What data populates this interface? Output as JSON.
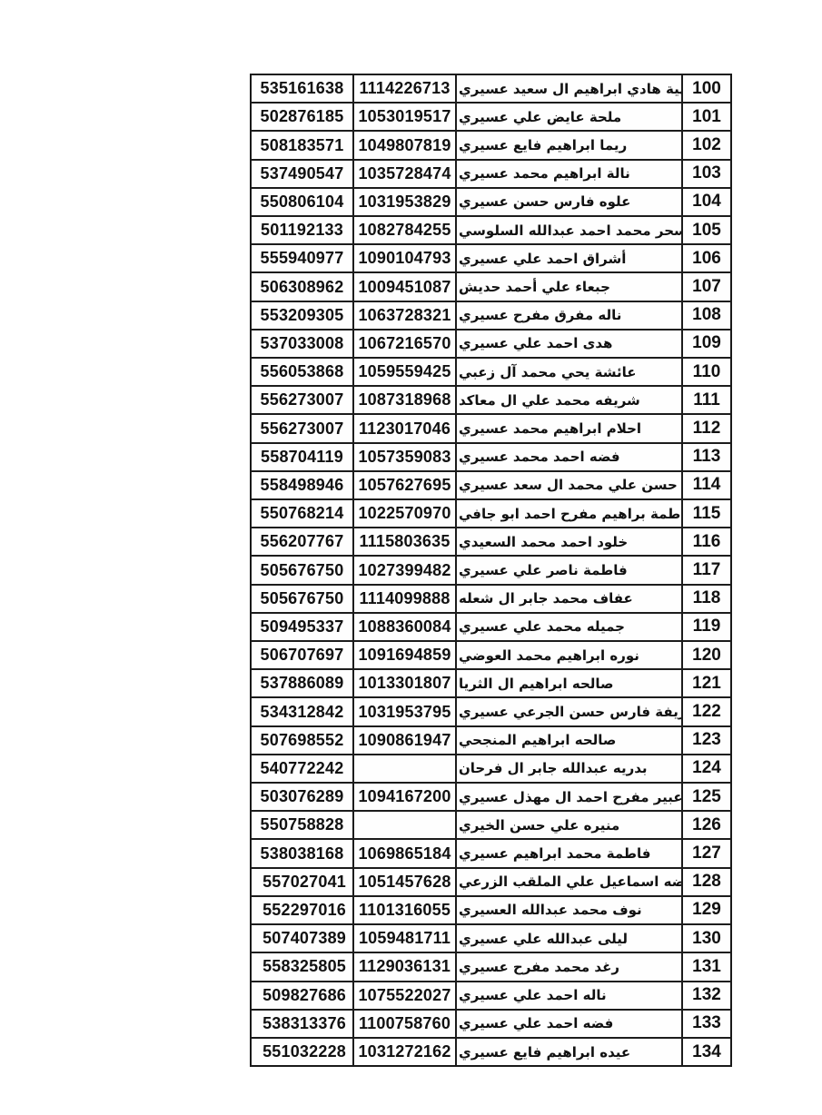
{
  "page": {
    "background": "#ffffff"
  },
  "colors": {
    "ink": "#111111",
    "table_border": "#1c1c1c"
  },
  "table": {
    "row_count": 35,
    "first_row_number": "100",
    "last_row_number": "134",
    "rows": [
      {
        "num": "100",
        "name": "بهية هادي ابراهيم ال سعيد عسيري",
        "id": "1114226713",
        "phone": "535161638"
      },
      {
        "num": "101",
        "name": "ملحة عايض علي عسيري",
        "id": "1053019517",
        "phone": "502876185"
      },
      {
        "num": "102",
        "name": "ريما ابراهيم فايع عسيري",
        "id": "1049807819",
        "phone": "508183571"
      },
      {
        "num": "103",
        "name": "نالة ابراهيم محمد عسيري",
        "id": "1035728474",
        "phone": "537490547"
      },
      {
        "num": "104",
        "name": "علوه فارس حسن عسيري",
        "id": "1031953829",
        "phone": "550806104"
      },
      {
        "num": "105",
        "name": "سحر محمد احمد عبدالله السلوسي",
        "id": "1082784255",
        "phone": "501192133"
      },
      {
        "num": "106",
        "name": "أشراق احمد علي عسيري",
        "id": "1090104793",
        "phone": "555940977"
      },
      {
        "num": "107",
        "name": "جبعاء علي أحمد حديش",
        "id": "1009451087",
        "phone": "506308962"
      },
      {
        "num": "108",
        "name": "ناله مفرق مفرح عسيري",
        "id": "1063728321",
        "phone": "553209305"
      },
      {
        "num": "109",
        "name": "هدى احمد علي عسيري",
        "id": "1067216570",
        "phone": "537033008"
      },
      {
        "num": "110",
        "name": "عائشة يحي محمد آل زعبي",
        "id": "1059559425",
        "phone": "556053868"
      },
      {
        "num": "111",
        "name": "شريفه محمد علي ال معاكد",
        "id": "1087318968",
        "phone": "556273007"
      },
      {
        "num": "112",
        "name": "احلام ابراهيم محمد عسيري",
        "id": "1123017046",
        "phone": "556273007"
      },
      {
        "num": "113",
        "name": "فضه احمد محمد عسيري",
        "id": "1057359083",
        "phone": "558704119"
      },
      {
        "num": "114",
        "name": "فاطمه حسن علي محمد ال سعد عسيري",
        "id": "1057627695",
        "phone": "558498946"
      },
      {
        "num": "115",
        "name": "فاطمة براهيم مفرح احمد ابو جافي",
        "id": "1022570970",
        "phone": "550768214"
      },
      {
        "num": "116",
        "name": "خلود احمد محمد السعيدي",
        "id": "1115803635",
        "phone": "556207767"
      },
      {
        "num": "117",
        "name": "فاطمة ناصر علي عسيري",
        "id": "1027399482",
        "phone": "505676750"
      },
      {
        "num": "118",
        "name": "عفاف محمد جابر ال شعله",
        "id": "1114099888",
        "phone": "505676750"
      },
      {
        "num": "119",
        "name": "جميله محمد علي عسيري",
        "id": "1088360084",
        "phone": "509495337"
      },
      {
        "num": "120",
        "name": "نوره ابراهيم محمد العوضي",
        "id": "1091694859",
        "phone": "506707697"
      },
      {
        "num": "121",
        "name": "صالحه ابراهيم ال الثريا",
        "id": "1013301807",
        "phone": "537886089"
      },
      {
        "num": "122",
        "name": "شريفة فارس حسن الجرعي عسيري",
        "id": "1031953795",
        "phone": "534312842"
      },
      {
        "num": "123",
        "name": "صالحه ابراهيم المنجحي",
        "id": "1090861947",
        "phone": "507698552"
      },
      {
        "num": "124",
        "name": "بدريه عبدالله جابر ال فرحان",
        "id": "",
        "phone": "540772242"
      },
      {
        "num": "125",
        "name": "عبير مفرح احمد ال مهذل عسيري",
        "id": "1094167200",
        "phone": "503076289"
      },
      {
        "num": "126",
        "name": "منيره علي حسن الخيري",
        "id": "",
        "phone": "550758828"
      },
      {
        "num": "127",
        "name": "فاطمة محمد ابراهيم عسيري",
        "id": "1069865184",
        "phone": "538038168"
      },
      {
        "num": "128",
        "name": "معيضه اسماعيل علي الملقب الزرعي",
        "id": "1051457628",
        "phone": "557027041"
      },
      {
        "num": "129",
        "name": "نوف محمد عبدالله العسيري",
        "id": "1101316055",
        "phone": "552297016"
      },
      {
        "num": "130",
        "name": "ليلى عبدالله علي عسيري",
        "id": "1059481711",
        "phone": "507407389"
      },
      {
        "num": "131",
        "name": "رغد محمد مفرح عسيري",
        "id": "1129036131",
        "phone": "558325805"
      },
      {
        "num": "132",
        "name": "ناله احمد علي عسيري",
        "id": "1075522027",
        "phone": "509827686"
      },
      {
        "num": "133",
        "name": "فضه احمد علي عسيري",
        "id": "1100758760",
        "phone": "538313376"
      },
      {
        "num": "134",
        "name": "عيده ابراهيم فايع عسيري",
        "id": "1031272162",
        "phone": "551032228"
      }
    ]
  }
}
